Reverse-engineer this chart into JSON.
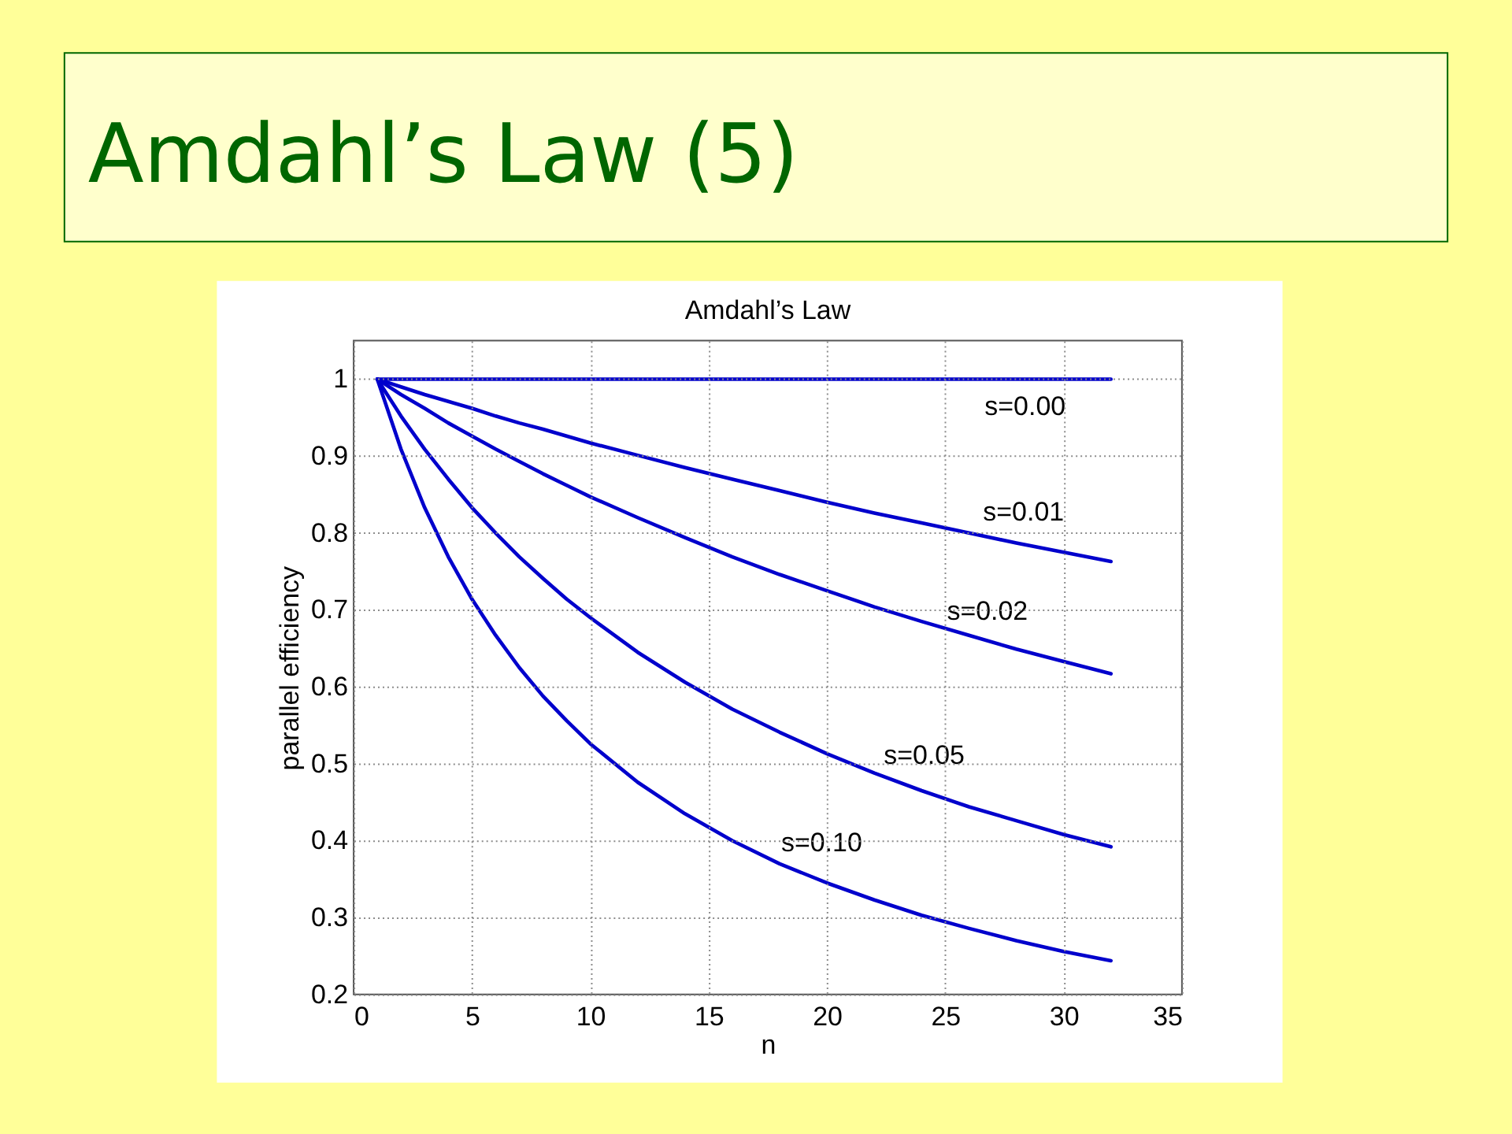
{
  "chart_data": {
    "type": "line",
    "title": "Amdahl’s Law (5)",
    "subtitle": "Amdahl’s Law",
    "xlabel": "n",
    "ylabel": "parallel efficiency",
    "x": [
      1,
      2,
      3,
      4,
      5,
      6,
      7,
      8,
      9,
      10,
      12,
      14,
      16,
      18,
      20,
      22,
      24,
      26,
      28,
      30,
      32
    ],
    "series": [
      {
        "name": "s=0.00",
        "color": "#0000cc",
        "values": [
          1,
          1,
          1,
          1,
          1,
          1,
          1,
          1,
          1,
          1,
          1,
          1,
          1,
          1,
          1,
          1,
          1,
          1,
          1,
          1,
          1
        ]
      },
      {
        "name": "s=0.01",
        "color": "#0000cc",
        "values": [
          1,
          0.99,
          0.98,
          0.971,
          0.962,
          0.952,
          0.943,
          0.935,
          0.926,
          0.917,
          0.901,
          0.885,
          0.87,
          0.855,
          0.84,
          0.826,
          0.813,
          0.8,
          0.787,
          0.775,
          0.763
        ]
      },
      {
        "name": "s=0.02",
        "color": "#0000cc",
        "values": [
          1,
          0.98,
          0.962,
          0.943,
          0.926,
          0.909,
          0.893,
          0.877,
          0.862,
          0.847,
          0.82,
          0.794,
          0.769,
          0.746,
          0.725,
          0.704,
          0.685,
          0.667,
          0.649,
          0.633,
          0.617
        ]
      },
      {
        "name": "s=0.05",
        "color": "#0000cc",
        "values": [
          1,
          0.952,
          0.909,
          0.87,
          0.833,
          0.8,
          0.769,
          0.741,
          0.714,
          0.69,
          0.645,
          0.606,
          0.571,
          0.541,
          0.513,
          0.488,
          0.465,
          0.444,
          0.426,
          0.408,
          0.392
        ]
      },
      {
        "name": "s=0.10",
        "color": "#0000cc",
        "values": [
          1,
          0.909,
          0.833,
          0.769,
          0.714,
          0.667,
          0.625,
          0.588,
          0.556,
          0.526,
          0.476,
          0.435,
          0.4,
          0.37,
          0.345,
          0.323,
          0.303,
          0.286,
          0.27,
          0.256,
          0.244
        ]
      }
    ],
    "xlim": [
      0,
      35
    ],
    "xticks": [
      0,
      5,
      10,
      15,
      20,
      25,
      30,
      35
    ],
    "ylim": [
      0.2,
      1.05
    ],
    "yticks": [
      0.2,
      0.3,
      0.4,
      0.5,
      0.6,
      0.7,
      0.8,
      0.9,
      1
    ],
    "grid": true,
    "line_style": "solid"
  }
}
